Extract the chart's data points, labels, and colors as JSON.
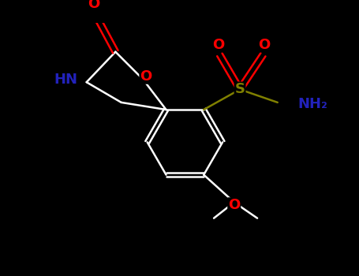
{
  "bg_color": "#000000",
  "bond_color": "#ffffff",
  "atom_colors": {
    "O": "#ff0000",
    "N": "#2222bb",
    "S": "#808000",
    "C": "#ffffff",
    "H": "#ffffff"
  },
  "title": "",
  "figsize": [
    4.55,
    3.5
  ],
  "dpi": 100,
  "bond_lw": 1.8,
  "font_size": 13
}
